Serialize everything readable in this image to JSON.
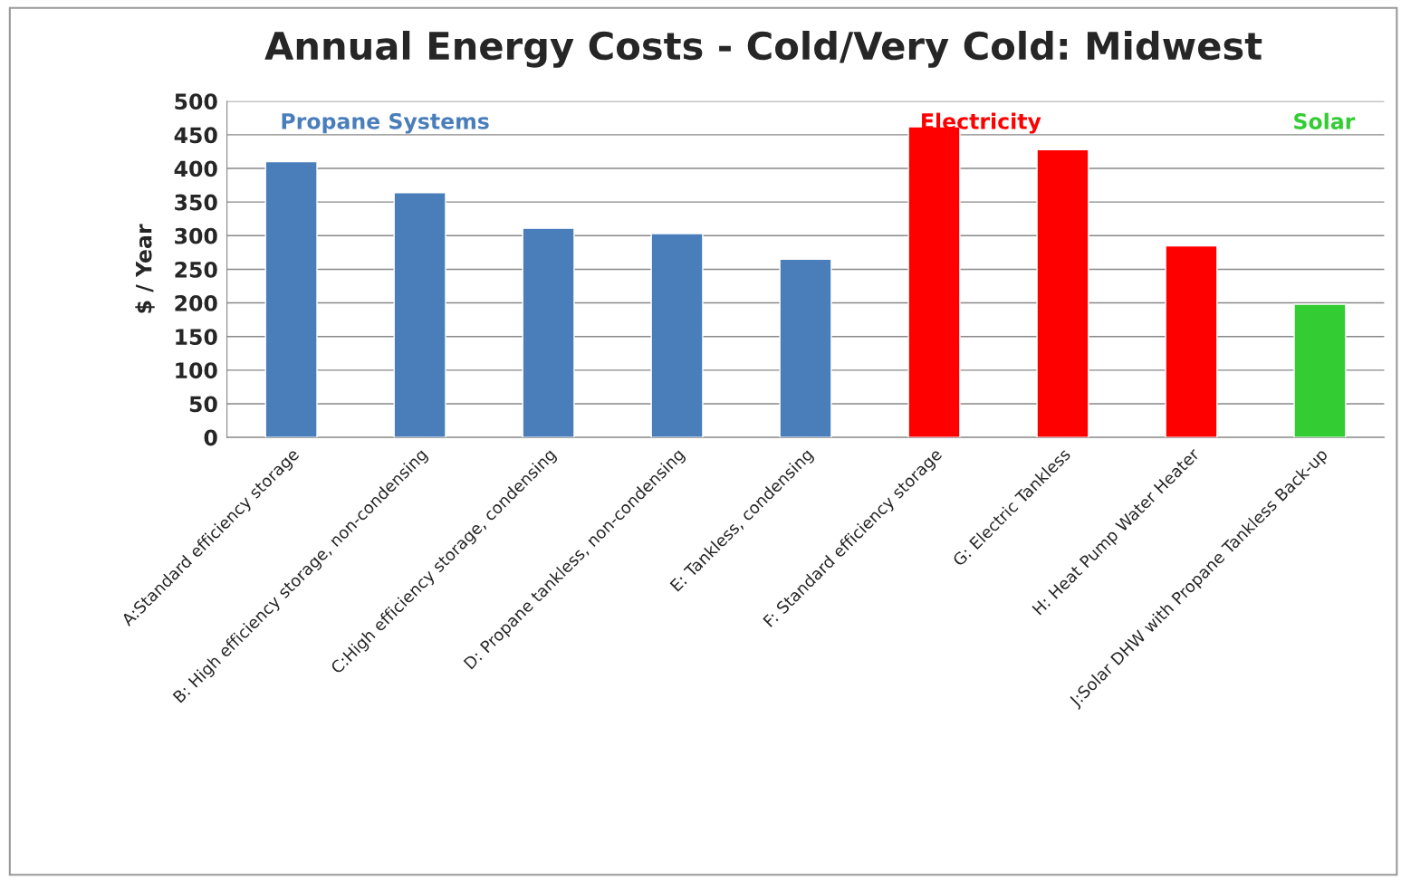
{
  "chart_data": {
    "type": "bar",
    "title": "Annual Energy Costs - Cold/Very Cold: Midwest",
    "ylabel": "$ / Year",
    "categories": [
      "A:Standard efficiency storage",
      "B: High efficiency storage, non-condensing",
      "C:High efficiency storage, condensing",
      "D: Propane tankless, non-condensing",
      "E: Tankless, condensing",
      "F: Standard efficiency storage",
      "G: Electric Tankless",
      "H: Heat Pump Water Heater",
      "J:Solar DHW with Propane Tankless Back-up"
    ],
    "values": [
      410,
      364,
      311,
      303,
      265,
      462,
      428,
      285,
      198
    ],
    "colors": [
      "#4a7ebb",
      "#4a7ebb",
      "#4a7ebb",
      "#4a7ebb",
      "#4a7ebb",
      "#ff0000",
      "#ff0000",
      "#ff0000",
      "#33cc33"
    ],
    "ylim": [
      0,
      500
    ],
    "yticks": [
      0,
      50,
      100,
      150,
      200,
      250,
      300,
      350,
      400,
      450,
      500
    ],
    "grid": "y",
    "annotations": [
      "Propane Systems",
      "Electricity",
      "Solar"
    ]
  }
}
